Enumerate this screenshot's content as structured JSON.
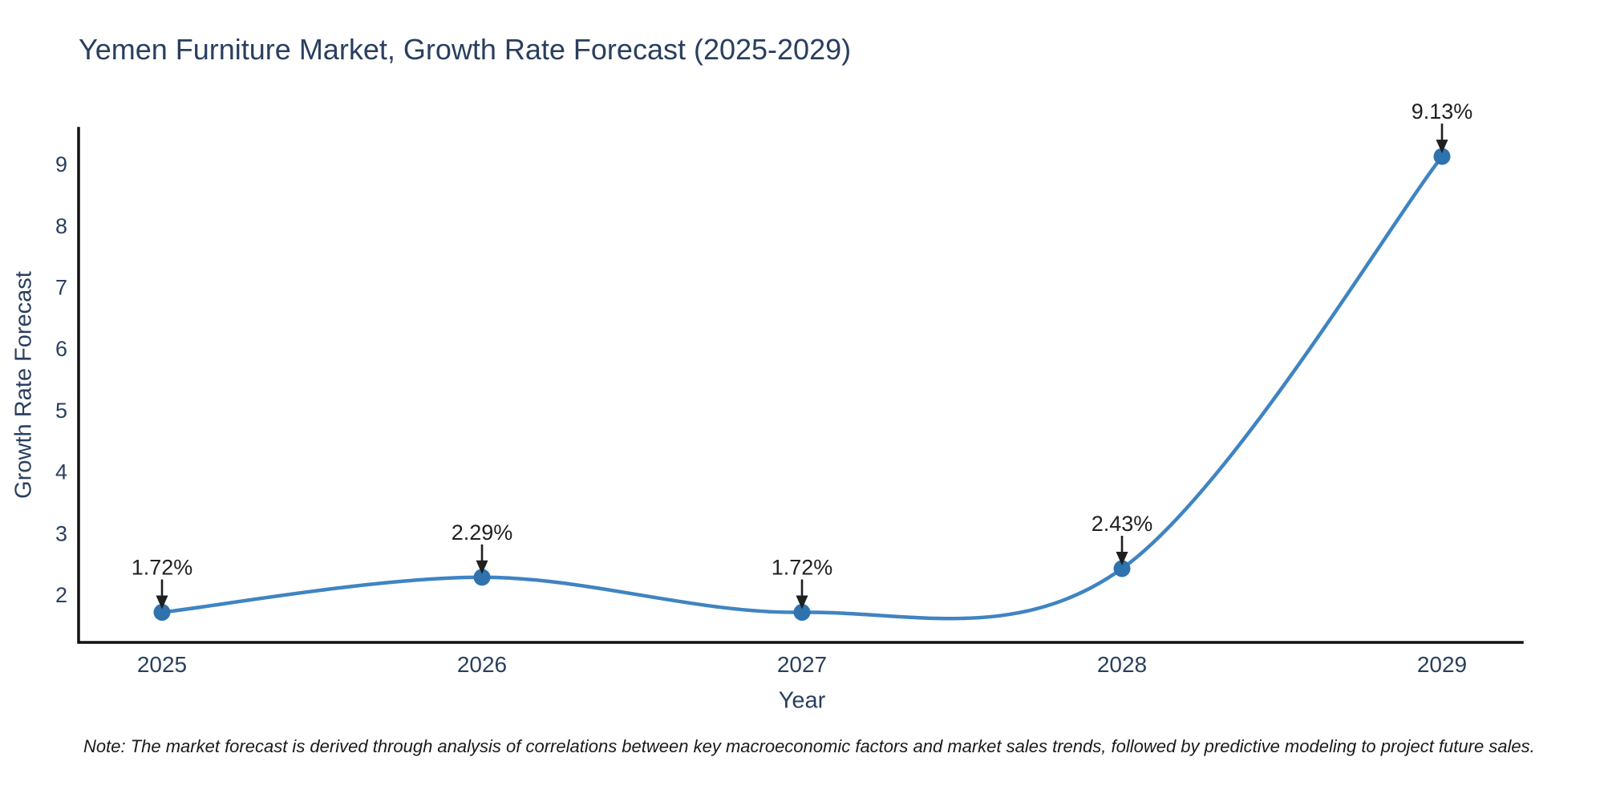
{
  "note": "Note: The market forecast is derived through analysis of correlations between key macroeconomic factors and market sales trends, followed by predictive modeling to project future sales.",
  "chart_data": {
    "type": "line",
    "line_shape": "spline",
    "title": "Yemen Furniture Market, Growth Rate Forecast (2025-2029)",
    "xlabel": "Year",
    "ylabel": "Growth Rate Forecast",
    "categories": [
      "2025",
      "2026",
      "2027",
      "2028",
      "2029"
    ],
    "values": [
      1.72,
      2.29,
      1.72,
      2.43,
      9.13
    ],
    "point_labels": [
      "1.72%",
      "2.29%",
      "1.72%",
      "2.43%",
      "9.13%"
    ],
    "y_ticks": [
      "2",
      "3",
      "4",
      "5",
      "6",
      "7",
      "8",
      "9"
    ],
    "ylim": [
      1.25,
      9.6
    ],
    "grid": false,
    "legend": "none",
    "markers": true,
    "annotation_arrows": true,
    "colors": {
      "line": "#3f84c2",
      "marker": "#2e72ae",
      "axis": "#111111",
      "heading_text": "#2a3f5f",
      "tick_text": "#2a3f5f",
      "annotation_text": "#1f1f1f",
      "note_text": "#1a1a1a",
      "background": "#ffffff"
    }
  }
}
